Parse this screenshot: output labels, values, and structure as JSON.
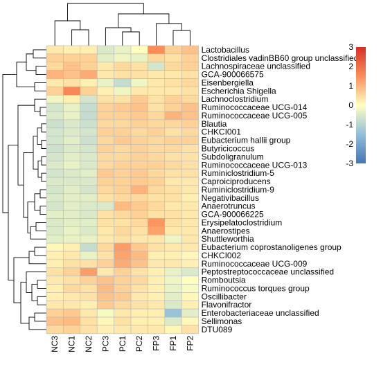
{
  "chart_data": {
    "type": "heatmap",
    "title": "",
    "xlabel": "",
    "ylabel": "",
    "columns": [
      "NC3",
      "NC1",
      "NC2",
      "PC3",
      "PC1",
      "PC2",
      "FP3",
      "FP1",
      "FP2"
    ],
    "rows": [
      "Lactobacillus",
      "Clostridiales vadinBB60 group unclassified",
      "Lachnospiraceae unclassified",
      "GCA-900066575",
      "Eisenbergiella",
      "Escherichia Shigella",
      "Lachnoclostridium",
      "Ruminococcaceae UCG-014",
      "Ruminococcaceae UCG-005",
      "Blautia",
      "CHKCI001",
      "Eubacterium hallii group",
      "Butyricicoccus",
      "Subdoligranulum",
      "Ruminococcaceae UCG-013",
      "Ruminiclostridium-5",
      "Caproiciproducens",
      "Ruminiclostridium-9",
      "Negativibacillus",
      "Anaerotruncus",
      "GCA-900066225",
      "Erysipelatoclostridium",
      "Anaerostipes",
      "Shuttleworthia",
      "Eubacterium coprostanoligenes group",
      "CHKCI002",
      "Ruminococcaceae UCG-009",
      "Peptostreptococcaceae unclassified",
      "Romboutsia",
      "Ruminococcus torques group",
      "Oscillibacter",
      "Flavonifractor",
      "Enterobacteriaceae unclassified",
      "Sellimonas",
      "DTU089"
    ],
    "values": [
      [
        0.3,
        0.2,
        0.2,
        -0.5,
        -0.3,
        0.0,
        1.5,
        0.6,
        0.8
      ],
      [
        0.6,
        0.6,
        0.6,
        -0.4,
        -0.2,
        -0.3,
        0.5,
        0.4,
        0.6
      ],
      [
        0.5,
        0.8,
        0.6,
        0.3,
        0.5,
        0.4,
        -0.6,
        0.5,
        0.6
      ],
      [
        1.0,
        0.8,
        1.1,
        0.3,
        0.4,
        0.4,
        0.3,
        0.3,
        0.4
      ],
      [
        0.3,
        0.4,
        0.2,
        -0.3,
        -0.8,
        -0.2,
        0.3,
        0.4,
        0.5
      ],
      [
        0.6,
        1.6,
        0.6,
        0.2,
        -0.2,
        0.3,
        0.3,
        0.3,
        0.4
      ],
      [
        -0.2,
        0.2,
        -0.6,
        0.4,
        0.4,
        0.7,
        0.4,
        0.6,
        0.5
      ],
      [
        -0.6,
        -0.3,
        -0.8,
        0.6,
        0.7,
        0.8,
        0.4,
        0.6,
        0.8
      ],
      [
        -0.5,
        -0.3,
        -0.8,
        0.6,
        0.6,
        0.7,
        0.5,
        1.0,
        0.8
      ],
      [
        -0.7,
        -0.5,
        -0.7,
        0.5,
        0.5,
        0.6,
        0.5,
        0.5,
        0.6
      ],
      [
        -0.6,
        -0.5,
        -0.6,
        0.6,
        0.6,
        0.5,
        0.6,
        0.4,
        0.5
      ],
      [
        -0.6,
        -0.4,
        -0.7,
        0.5,
        0.7,
        0.6,
        0.5,
        0.6,
        0.6
      ],
      [
        -0.7,
        -0.5,
        -0.6,
        0.6,
        0.5,
        0.6,
        0.5,
        0.5,
        0.4
      ],
      [
        -0.6,
        -0.4,
        -0.5,
        0.5,
        0.5,
        0.6,
        0.5,
        0.4,
        0.4
      ],
      [
        -0.5,
        -0.3,
        -0.5,
        0.5,
        0.6,
        0.6,
        0.6,
        0.5,
        0.4
      ],
      [
        -0.6,
        -0.5,
        -0.4,
        0.7,
        0.6,
        0.7,
        0.5,
        0.4,
        0.4
      ],
      [
        -0.5,
        -0.5,
        -0.5,
        0.6,
        0.6,
        0.7,
        0.6,
        0.3,
        0.3
      ],
      [
        -0.6,
        -0.4,
        -0.6,
        0.5,
        0.6,
        1.0,
        0.5,
        0.4,
        0.3
      ],
      [
        -0.5,
        -0.4,
        -0.4,
        0.4,
        0.5,
        0.5,
        0.4,
        0.4,
        0.2
      ],
      [
        -0.6,
        -0.4,
        -0.5,
        -0.5,
        0.9,
        0.7,
        0.5,
        0.3,
        0.3
      ],
      [
        -0.4,
        -0.4,
        -0.5,
        0.4,
        0.5,
        0.6,
        0.4,
        0.4,
        0.3
      ],
      [
        -0.5,
        -0.4,
        -0.4,
        0.4,
        0.4,
        0.5,
        1.4,
        0.4,
        0.3
      ],
      [
        -0.5,
        -0.3,
        -0.5,
        0.3,
        0.5,
        0.4,
        1.2,
        0.3,
        0.3
      ],
      [
        -0.4,
        -0.3,
        -0.3,
        0.3,
        0.4,
        0.3,
        0.3,
        -0.2,
        0.3
      ],
      [
        0.1,
        0.2,
        -0.8,
        0.5,
        1.3,
        0.7,
        0.4,
        0.3,
        0.3
      ],
      [
        0.2,
        0.3,
        -0.3,
        0.4,
        1.2,
        0.9,
        0.2,
        0.2,
        0.1
      ],
      [
        0.2,
        0.4,
        0.4,
        0.6,
        1.1,
        0.8,
        0.3,
        0.3,
        0.2
      ],
      [
        0.4,
        0.6,
        1.3,
        0.3,
        0.6,
        0.4,
        0.2,
        -0.3,
        -0.5
      ],
      [
        0.3,
        0.4,
        0.6,
        0.8,
        0.6,
        0.5,
        0.2,
        -0.2,
        0.0
      ],
      [
        0.2,
        0.5,
        0.4,
        0.9,
        0.6,
        0.4,
        0.2,
        -0.3,
        -0.1
      ],
      [
        0.2,
        0.3,
        0.4,
        0.8,
        0.7,
        0.3,
        0.2,
        -0.4,
        0.1
      ],
      [
        0.3,
        0.3,
        0.2,
        0.7,
        0.5,
        0.4,
        0.3,
        -0.5,
        0.2
      ],
      [
        0.6,
        0.7,
        0.3,
        -0.1,
        0.3,
        0.2,
        0.2,
        -1.4,
        -0.4
      ],
      [
        0.8,
        0.9,
        0.4,
        0.1,
        0.4,
        0.2,
        0.2,
        -0.5,
        0.1
      ],
      [
        0.5,
        0.6,
        0.4,
        0.2,
        0.3,
        0.3,
        0.3,
        0.1,
        0.4
      ]
    ],
    "legend": {
      "position": "right",
      "min": -3,
      "max": 3,
      "ticks": [
        "3",
        "2",
        "1",
        "0",
        "-1",
        "-2",
        "-3"
      ],
      "colors": {
        "low": "#4575b4",
        "mid": "#ffffbf",
        "high": "#d73027"
      }
    },
    "dendrograms": {
      "columns": "top",
      "rows": "left"
    }
  }
}
